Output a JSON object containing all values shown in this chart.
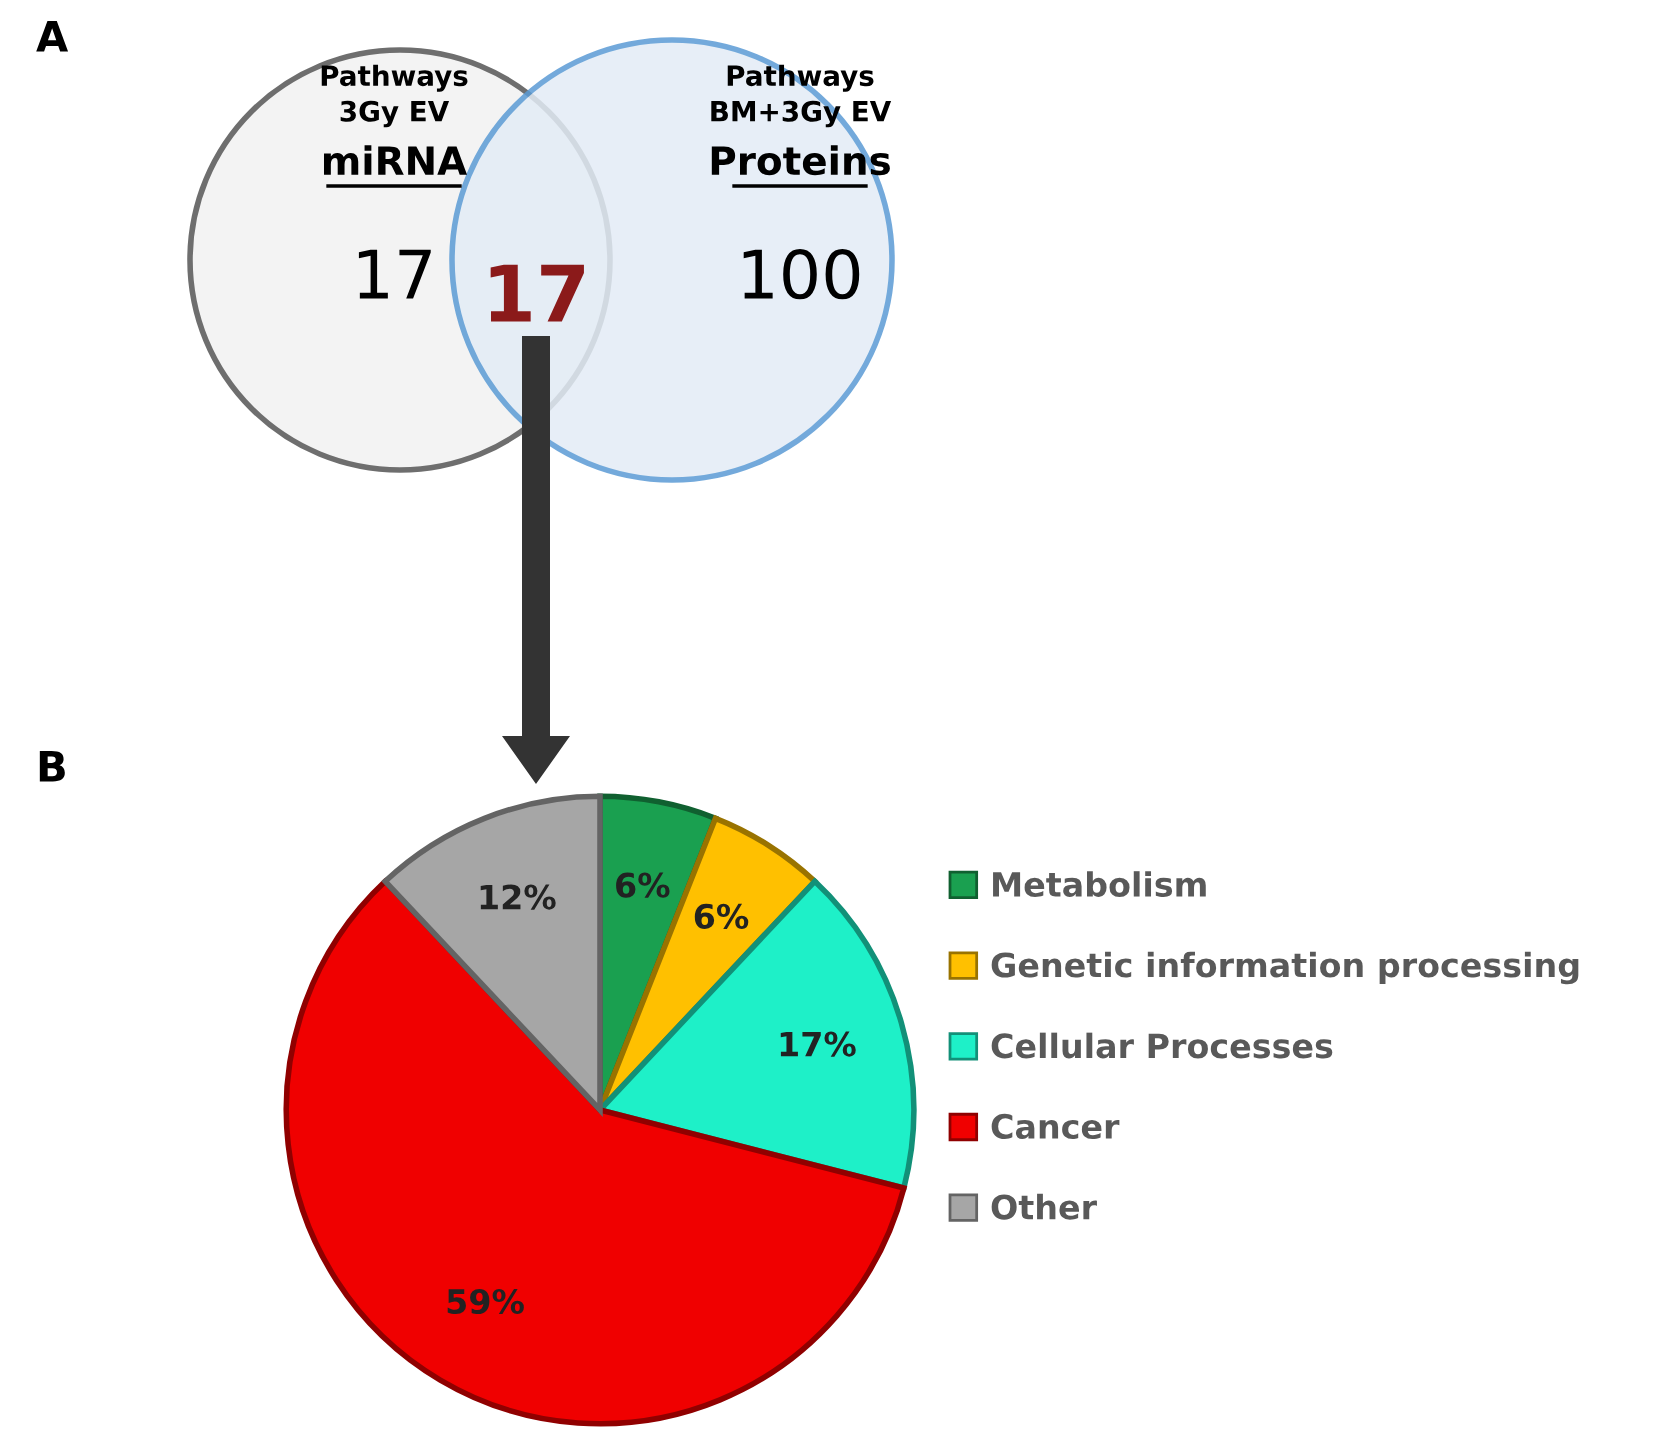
{
  "chart_data": [
    {
      "type": "other",
      "title": "A",
      "categories": [
        "Pathways\n3Gy EV\nmiRNA",
        null,
        "Pathways\nBM+3Gy EV\nProteins"
      ],
      "values": [
        17,
        17,
        100
      ],
      "value_labels": [
        "17",
        "17",
        "100"
      ],
      "colors": [
        "#f2f2f2",
        "#8b1a1a",
        "#e3ecf6"
      ]
    },
    {
      "type": "pie",
      "title": "B",
      "categories": [
        "Metabolism",
        "Genetic information processing",
        "Cellular Processes",
        "Cancer",
        "Other"
      ],
      "values": [
        6,
        6,
        17,
        59,
        12
      ],
      "colors": [
        "#1aa050",
        "#ffc000",
        "#1ef0c8",
        "#f00000",
        "#a6a6a6"
      ],
      "value_labels": [
        "6%",
        "6%",
        "17%",
        "59%",
        "12%"
      ],
      "legend": "right"
    }
  ]
}
